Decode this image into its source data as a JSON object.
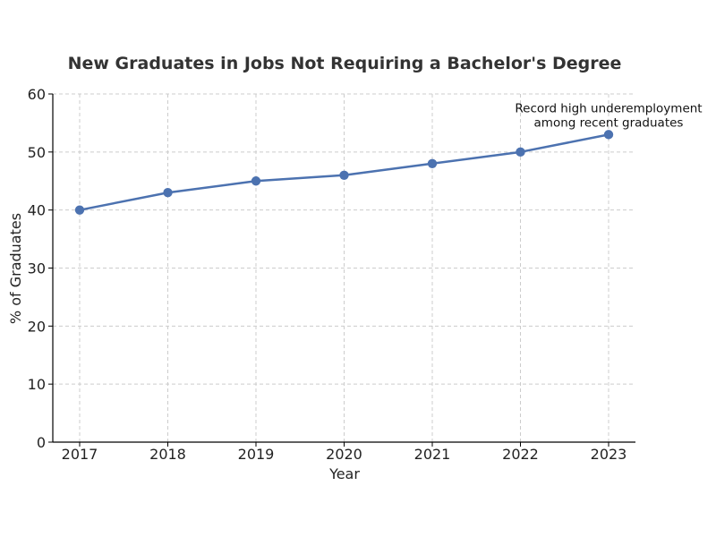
{
  "chart_data": {
    "type": "line",
    "title": "New Graduates in Jobs Not Requiring a Bachelor's Degree",
    "xlabel": "Year",
    "ylabel": "% of Graduates",
    "x": [
      2017,
      2018,
      2019,
      2020,
      2021,
      2022,
      2023
    ],
    "x_tick_labels": [
      "2017",
      "2018",
      "2019",
      "2020",
      "2021",
      "2022",
      "2023"
    ],
    "series": [
      {
        "values": [
          40,
          43,
          45,
          46,
          48,
          50,
          53
        ],
        "color": "#4c72b0"
      }
    ],
    "ylim": [
      0,
      60
    ],
    "y_ticks": [
      0,
      10,
      20,
      30,
      40,
      50,
      60
    ],
    "y_tick_labels": [
      "0",
      "10",
      "20",
      "30",
      "40",
      "50",
      "60"
    ],
    "grid": true,
    "annotation": {
      "lines": [
        "Record high underemployment",
        "among recent graduates"
      ],
      "x": 2023,
      "y": 53
    }
  }
}
